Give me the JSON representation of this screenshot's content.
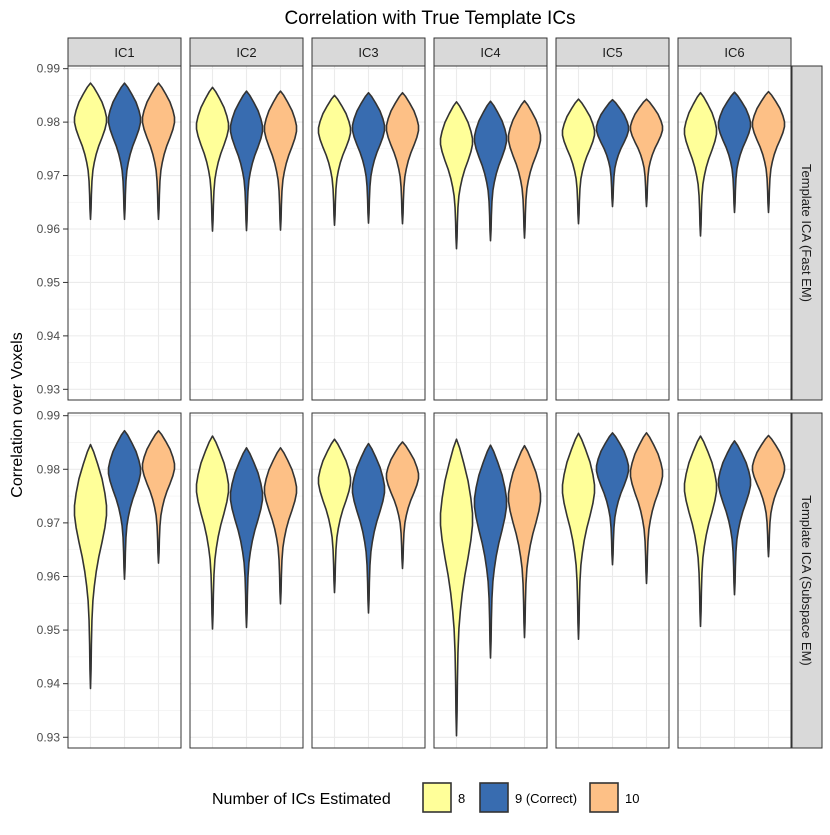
{
  "chart_data": {
    "type": "violin",
    "title": "Correlation with True Template ICs",
    "ylabel": "Correlation over Voxels",
    "xlabel": "",
    "ylim": [
      0.928,
      0.9905
    ],
    "yticks": [
      0.93,
      0.94,
      0.95,
      0.96,
      0.97,
      0.98,
      0.99
    ],
    "ytick_labels": [
      "0.93",
      "0.94",
      "0.95",
      "0.96",
      "0.97",
      "0.98",
      "0.99"
    ],
    "columns": [
      "IC1",
      "IC2",
      "IC3",
      "IC4",
      "IC5",
      "IC6"
    ],
    "rows": [
      "Template ICA (Fast EM)",
      "Template ICA (Subspace EM)"
    ],
    "legend": {
      "title": "Number of ICs Estimated",
      "position": "bottom",
      "items": [
        {
          "label": "8",
          "color": "#FFFF99"
        },
        {
          "label": "9 (Correct)",
          "color": "#386CB0"
        },
        {
          "label": "10",
          "color": "#FDC086"
        }
      ]
    },
    "grid": true,
    "series": [
      {
        "row": 0,
        "col": 0,
        "violins": [
          {
            "min": 0.9618,
            "max": 0.9873,
            "center": 0.9785
          },
          {
            "min": 0.9618,
            "max": 0.9873,
            "center": 0.9785
          },
          {
            "min": 0.9618,
            "max": 0.9873,
            "center": 0.9785
          }
        ]
      },
      {
        "row": 0,
        "col": 1,
        "violins": [
          {
            "min": 0.9596,
            "max": 0.9865,
            "center": 0.978
          },
          {
            "min": 0.9597,
            "max": 0.9858,
            "center": 0.978
          },
          {
            "min": 0.9598,
            "max": 0.9858,
            "center": 0.978
          }
        ]
      },
      {
        "row": 0,
        "col": 2,
        "violins": [
          {
            "min": 0.9607,
            "max": 0.985,
            "center": 0.9775
          },
          {
            "min": 0.9611,
            "max": 0.9855,
            "center": 0.9778
          },
          {
            "min": 0.961,
            "max": 0.9855,
            "center": 0.9778
          }
        ]
      },
      {
        "row": 0,
        "col": 3,
        "violins": [
          {
            "min": 0.9563,
            "max": 0.9838,
            "center": 0.976
          },
          {
            "min": 0.9578,
            "max": 0.9839,
            "center": 0.9763
          },
          {
            "min": 0.9583,
            "max": 0.984,
            "center": 0.9763
          }
        ]
      },
      {
        "row": 0,
        "col": 4,
        "violins": [
          {
            "min": 0.961,
            "max": 0.9843,
            "center": 0.9765
          },
          {
            "min": 0.9642,
            "max": 0.9842,
            "center": 0.9768
          },
          {
            "min": 0.9642,
            "max": 0.9843,
            "center": 0.9768
          }
        ]
      },
      {
        "row": 0,
        "col": 5,
        "violins": [
          {
            "min": 0.9587,
            "max": 0.9855,
            "center": 0.978
          },
          {
            "min": 0.9631,
            "max": 0.9856,
            "center": 0.978
          },
          {
            "min": 0.9631,
            "max": 0.9857,
            "center": 0.978
          }
        ]
      },
      {
        "row": 1,
        "col": 0,
        "violins": [
          {
            "min": 0.9391,
            "max": 0.9846,
            "center": 0.978
          },
          {
            "min": 0.9595,
            "max": 0.9872,
            "center": 0.978
          },
          {
            "min": 0.9625,
            "max": 0.9872,
            "center": 0.978
          }
        ]
      },
      {
        "row": 1,
        "col": 1,
        "violins": [
          {
            "min": 0.9502,
            "max": 0.9862,
            "center": 0.9775
          },
          {
            "min": 0.9505,
            "max": 0.984,
            "center": 0.9775
          },
          {
            "min": 0.9549,
            "max": 0.984,
            "center": 0.9775
          }
        ]
      },
      {
        "row": 1,
        "col": 2,
        "violins": [
          {
            "min": 0.957,
            "max": 0.9856,
            "center": 0.9775
          },
          {
            "min": 0.9532,
            "max": 0.9848,
            "center": 0.978
          },
          {
            "min": 0.9615,
            "max": 0.9851,
            "center": 0.9775
          }
        ]
      },
      {
        "row": 1,
        "col": 3,
        "violins": [
          {
            "min": 0.9303,
            "max": 0.9856,
            "center": 0.9775
          },
          {
            "min": 0.9448,
            "max": 0.9845,
            "center": 0.9775
          },
          {
            "min": 0.9486,
            "max": 0.9844,
            "center": 0.9775
          }
        ]
      },
      {
        "row": 1,
        "col": 4,
        "violins": [
          {
            "min": 0.9483,
            "max": 0.9867,
            "center": 0.976
          },
          {
            "min": 0.9622,
            "max": 0.9868,
            "center": 0.9765
          },
          {
            "min": 0.9587,
            "max": 0.9868,
            "center": 0.976
          }
        ]
      },
      {
        "row": 1,
        "col": 5,
        "violins": [
          {
            "min": 0.9507,
            "max": 0.9862,
            "center": 0.9775
          },
          {
            "min": 0.9566,
            "max": 0.9853,
            "center": 0.978
          },
          {
            "min": 0.9637,
            "max": 0.9863,
            "center": 0.9775
          }
        ]
      }
    ]
  }
}
